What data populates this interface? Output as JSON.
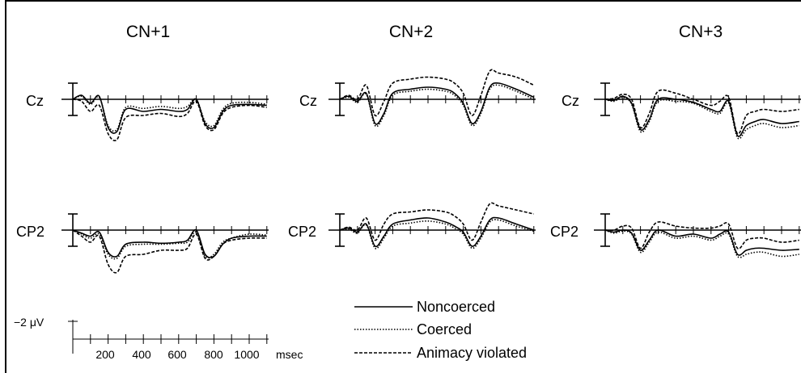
{
  "chart_data": {
    "type": "line",
    "panels": [
      {
        "title": "CN+1"
      },
      {
        "title": "CN+2"
      },
      {
        "title": "CN+3"
      }
    ],
    "channels": [
      "Cz",
      "CP2"
    ],
    "series": [
      {
        "name": "Noncoerced",
        "style": "solid"
      },
      {
        "name": "Coerced",
        "style": "dotted"
      },
      {
        "name": "Animacy violated",
        "style": "dashed"
      }
    ],
    "x_axis": {
      "ticks": [
        "200",
        "400",
        "600",
        "800",
        "1000"
      ],
      "unit": "msec",
      "range": [
        0,
        1100
      ]
    },
    "y_axis": {
      "scale_label": "−2 μV",
      "scale_value_uv": -2,
      "negative_up": true
    },
    "waveforms": {
      "CN+1": {
        "Cz": {
          "t": [
            0,
            50,
            100,
            150,
            200,
            250,
            300,
            400,
            500,
            600,
            650,
            700,
            750,
            800,
            850,
            900,
            1000,
            1100
          ],
          "Noncoerced": [
            0,
            -0.4,
            0.4,
            -0.3,
            2.8,
            3.2,
            1.0,
            1.2,
            1.0,
            1.2,
            1.0,
            0,
            2.4,
            2.8,
            1.2,
            0.6,
            0.5,
            0.6
          ],
          "Coerced": [
            0,
            -0.3,
            0.5,
            -0.2,
            2.6,
            3.0,
            0.8,
            0.9,
            0.7,
            0.9,
            0.7,
            0,
            2.2,
            2.6,
            1.0,
            0.4,
            0.3,
            0.5
          ],
          "Animacy violated": [
            0,
            0.2,
            1.2,
            0.6,
            3.4,
            4.0,
            1.8,
            1.6,
            1.4,
            1.7,
            1.4,
            0.2,
            2.6,
            3.0,
            1.4,
            0.8,
            0.6,
            0.8
          ]
        },
        "CP2": {
          "t": [
            0,
            50,
            100,
            150,
            200,
            250,
            300,
            400,
            500,
            600,
            650,
            700,
            750,
            800,
            850,
            900,
            1000,
            1100
          ],
          "Noncoerced": [
            0,
            0.3,
            0.6,
            0.2,
            2.2,
            2.6,
            1.4,
            1.2,
            1.3,
            1.2,
            1.0,
            0,
            2.4,
            2.6,
            1.4,
            0.8,
            0.6,
            0.6
          ],
          "Coerced": [
            0,
            0.4,
            0.8,
            0.4,
            2.4,
            2.8,
            1.6,
            1.4,
            1.4,
            1.3,
            1.2,
            0.2,
            2.6,
            2.4,
            1.2,
            0.8,
            0.4,
            0.5
          ],
          "Animacy violated": [
            0,
            0.6,
            1.2,
            0.6,
            3.4,
            4.2,
            2.6,
            2.4,
            2.0,
            2.0,
            1.8,
            0.4,
            2.8,
            2.6,
            1.4,
            1.0,
            0.8,
            0.8
          ]
        }
      },
      "CN+2": {
        "Cz": {
          "t": [
            0,
            50,
            100,
            150,
            200,
            250,
            300,
            400,
            500,
            600,
            650,
            700,
            750,
            800,
            850,
            900,
            1000,
            1100
          ],
          "Noncoerced": [
            0,
            -0.3,
            0.2,
            -0.6,
            2.4,
            1.4,
            -0.6,
            -1.0,
            -1.2,
            -1.0,
            -0.6,
            0.4,
            2.4,
            1.2,
            -1.2,
            -1.6,
            -1.0,
            -0.2
          ],
          "Coerced": [
            0,
            -0.2,
            0.3,
            -0.5,
            2.6,
            1.6,
            -0.4,
            -0.8,
            -1.0,
            -0.8,
            -0.4,
            0.6,
            2.6,
            1.4,
            -1.0,
            -1.4,
            -0.8,
            0.0
          ],
          "Animacy violated": [
            0,
            -0.4,
            0.0,
            -1.4,
            1.6,
            0.2,
            -1.6,
            -2.0,
            -2.2,
            -2.0,
            -1.6,
            -0.6,
            1.6,
            -0.4,
            -2.8,
            -2.6,
            -2.2,
            -1.4
          ]
        },
        "CP2": {
          "t": [
            0,
            50,
            100,
            150,
            200,
            250,
            300,
            400,
            500,
            600,
            650,
            700,
            750,
            800,
            850,
            900,
            1000,
            1100
          ],
          "Noncoerced": [
            0,
            -0.2,
            0.2,
            -0.6,
            1.6,
            0.6,
            -0.6,
            -1.0,
            -1.2,
            -0.8,
            -0.4,
            0.2,
            1.6,
            0.6,
            -1.0,
            -1.2,
            -0.6,
            0.0
          ],
          "Coerced": [
            0,
            -0.1,
            0.3,
            -0.5,
            1.8,
            0.8,
            -0.4,
            -0.7,
            -0.9,
            -0.6,
            -0.2,
            0.4,
            1.8,
            0.8,
            -0.8,
            -1.0,
            -0.4,
            0.1
          ],
          "Animacy violated": [
            0,
            -0.3,
            0.0,
            -1.2,
            1.0,
            -0.6,
            -1.6,
            -1.8,
            -2.0,
            -1.8,
            -1.4,
            -0.6,
            1.0,
            -0.8,
            -2.6,
            -2.4,
            -2.0,
            -1.6
          ]
        }
      },
      "CN+3": {
        "Cz": {
          "t": [
            0,
            50,
            100,
            150,
            200,
            250,
            300,
            400,
            500,
            600,
            650,
            700,
            750,
            800,
            850,
            900,
            1000,
            1100
          ],
          "Noncoerced": [
            0,
            0.1,
            -0.3,
            0.4,
            3.0,
            2.0,
            0.0,
            0.0,
            0.3,
            1.0,
            1.2,
            0.2,
            3.6,
            2.6,
            2.2,
            2.0,
            2.4,
            2.2
          ],
          "Coerced": [
            0,
            0.2,
            -0.2,
            0.5,
            3.2,
            2.2,
            0.2,
            0.2,
            0.4,
            1.2,
            1.4,
            0.4,
            3.8,
            3.0,
            2.6,
            2.4,
            2.8,
            2.6
          ],
          "Animacy violated": [
            0,
            -0.1,
            -0.5,
            0.0,
            2.8,
            1.4,
            -0.8,
            -0.6,
            0.0,
            0.6,
            0.2,
            -0.2,
            3.4,
            1.6,
            1.2,
            1.0,
            1.2,
            1.0
          ]
        },
        "CP2": {
          "t": [
            0,
            50,
            100,
            150,
            200,
            250,
            300,
            400,
            500,
            600,
            650,
            700,
            750,
            800,
            850,
            900,
            1000,
            1100
          ],
          "Noncoerced": [
            0,
            0.2,
            0.0,
            0.3,
            2.0,
            1.0,
            0.0,
            0.6,
            0.4,
            0.8,
            0.4,
            0.2,
            2.4,
            2.0,
            1.8,
            1.8,
            2.0,
            1.9
          ],
          "Coerced": [
            0,
            0.3,
            0.1,
            0.4,
            2.2,
            1.2,
            0.2,
            0.8,
            0.6,
            1.0,
            0.6,
            0.4,
            2.6,
            2.4,
            2.2,
            2.2,
            2.6,
            2.4
          ],
          "Animacy violated": [
            0,
            0.0,
            -0.4,
            -0.2,
            1.8,
            0.2,
            -0.8,
            -0.4,
            -0.2,
            -0.2,
            -0.4,
            -0.6,
            1.8,
            1.0,
            0.8,
            0.8,
            1.2,
            1.0
          ]
        }
      }
    }
  }
}
